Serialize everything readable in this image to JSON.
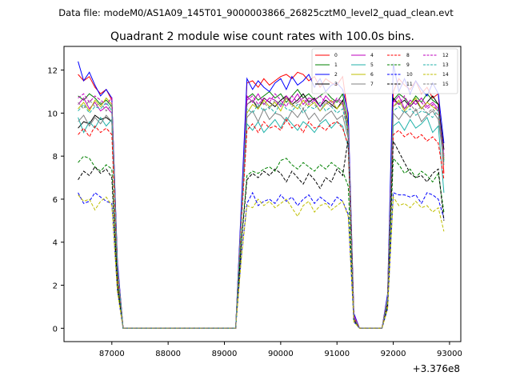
{
  "chart_data": {
    "type": "line",
    "suptitle": "Data file: modeM0/AS1A09_145T01_9000003866_26825cztM0_level2_quad_clean.evt",
    "title": "Quadrant 2 module wise count rates with 100.0s bins.",
    "xlabel": "",
    "ylabel": "",
    "x_offset_label": "+3.376e8",
    "xlim": [
      86150,
      93200
    ],
    "ylim": [
      -0.62,
      13.1
    ],
    "xticks": [
      87000,
      88000,
      89000,
      90000,
      91000,
      92000,
      93000
    ],
    "yticks": [
      0,
      2,
      4,
      6,
      8,
      10,
      12
    ],
    "xtick_labels": [
      "87000",
      "88000",
      "89000",
      "90000",
      "91000",
      "92000",
      "93000"
    ],
    "ytick_labels": [
      "0",
      "2",
      "4",
      "6",
      "8",
      "10",
      "12"
    ],
    "legend_position": "top-right",
    "x": [
      86400,
      86500,
      86600,
      86700,
      86800,
      86900,
      87000,
      87100,
      87200,
      87300,
      87400,
      87500,
      87600,
      87700,
      87800,
      87900,
      88000,
      88100,
      88200,
      88300,
      88400,
      88500,
      88600,
      88700,
      88800,
      88900,
      89000,
      89100,
      89200,
      89300,
      89400,
      89500,
      89600,
      89700,
      89800,
      89900,
      90000,
      90100,
      90200,
      90300,
      90400,
      90500,
      90600,
      90700,
      90800,
      90900,
      91000,
      91100,
      91200,
      91300,
      91400,
      91500,
      91600,
      91700,
      91800,
      91900,
      92000,
      92100,
      92200,
      92300,
      92400,
      92500,
      92600,
      92700,
      92800,
      92900
    ],
    "series": [
      {
        "name": "0",
        "color": "#ff0000",
        "dash": "solid",
        "values": [
          11.8,
          11.5,
          11.7,
          11.2,
          10.9,
          11.1,
          10.6,
          3.0,
          0,
          0,
          0,
          0,
          0,
          0,
          0,
          0,
          0,
          0,
          0,
          0,
          0,
          0,
          0,
          0,
          0,
          0,
          0,
          0,
          0,
          5.5,
          11.4,
          11.5,
          11.2,
          11.6,
          11.3,
          11.5,
          11.7,
          11.8,
          11.6,
          11.9,
          11.8,
          11.5,
          11.7,
          11.2,
          11.6,
          11.4,
          11.3,
          11.7,
          9.8,
          0.6,
          0,
          0,
          0,
          0,
          0,
          1.5,
          11.0,
          11.6,
          11.3,
          11.1,
          11.5,
          10.9,
          11.2,
          10.7,
          10.9,
          7.2
        ]
      },
      {
        "name": "1",
        "color": "#008000",
        "dash": "solid",
        "values": [
          10.8,
          10.6,
          10.9,
          10.7,
          10.4,
          10.6,
          10.3,
          2.9,
          0,
          0,
          0,
          0,
          0,
          0,
          0,
          0,
          0,
          0,
          0,
          0,
          0,
          0,
          0,
          0,
          0,
          0,
          0,
          0,
          0,
          5.3,
          10.7,
          10.9,
          10.6,
          10.8,
          11.0,
          10.7,
          10.9,
          10.5,
          10.8,
          11.1,
          10.7,
          10.9,
          10.6,
          10.8,
          11.0,
          10.7,
          10.5,
          10.9,
          9.5,
          0.5,
          0,
          0,
          0,
          0,
          0,
          1.4,
          10.6,
          10.9,
          10.7,
          10.4,
          10.8,
          10.5,
          10.9,
          10.6,
          10.4,
          7.8
        ]
      },
      {
        "name": "2",
        "color": "#0000ff",
        "dash": "solid",
        "values": [
          12.4,
          11.5,
          11.9,
          11.3,
          10.8,
          11.1,
          10.7,
          3.1,
          0,
          0,
          0,
          0,
          0,
          0,
          0,
          0,
          0,
          0,
          0,
          0,
          0,
          0,
          0,
          0,
          0,
          0,
          0,
          0,
          0,
          5.7,
          11.6,
          11.1,
          11.5,
          11.2,
          11.0,
          11.4,
          11.6,
          11.1,
          11.7,
          11.3,
          11.5,
          11.8,
          11.2,
          11.6,
          11.0,
          11.3,
          11.4,
          11.1,
          10.0,
          0.7,
          0,
          0,
          0,
          0,
          0,
          1.6,
          12.3,
          11.0,
          11.6,
          10.9,
          11.5,
          11.1,
          10.8,
          11.4,
          10.9,
          8.6
        ]
      },
      {
        "name": "3",
        "color": "#000000",
        "dash": "solid",
        "values": [
          9.3,
          9.6,
          9.5,
          9.9,
          9.7,
          9.8,
          9.6,
          2.7,
          0,
          0,
          0,
          0,
          0,
          0,
          0,
          0,
          0,
          0,
          0,
          0,
          0,
          0,
          0,
          0,
          0,
          0,
          0,
          0,
          0,
          5.0,
          10.4,
          10.6,
          10.2,
          10.7,
          10.5,
          10.3,
          10.6,
          10.8,
          10.4,
          10.6,
          10.9,
          10.5,
          10.7,
          10.3,
          10.6,
          10.4,
          10.2,
          10.6,
          9.0,
          0.5,
          0,
          0,
          0,
          0,
          0,
          1.3,
          10.7,
          10.4,
          10.6,
          10.3,
          10.6,
          10.2,
          10.5,
          10.8,
          10.4,
          8.3
        ]
      },
      {
        "name": "4",
        "color": "#bf00bf",
        "dash": "solid",
        "values": [
          10.4,
          10.7,
          10.2,
          10.5,
          10.1,
          10.3,
          10.0,
          2.8,
          0,
          0,
          0,
          0,
          0,
          0,
          0,
          0,
          0,
          0,
          0,
          0,
          0,
          0,
          0,
          0,
          0,
          0,
          0,
          0,
          0,
          5.2,
          10.8,
          10.5,
          10.9,
          10.4,
          10.7,
          10.6,
          10.3,
          10.8,
          10.5,
          10.9,
          10.4,
          10.7,
          10.6,
          10.3,
          10.8,
          10.5,
          10.6,
          10.4,
          9.3,
          0.6,
          0,
          0,
          0,
          0,
          0,
          1.4,
          10.5,
          10.8,
          10.2,
          10.6,
          10.4,
          10.7,
          10.3,
          10.5,
          10.2,
          8.0
        ]
      },
      {
        "name": "5",
        "color": "#20b2aa",
        "dash": "solid",
        "values": [
          9.8,
          9.1,
          9.6,
          9.3,
          9.8,
          9.4,
          9.7,
          2.6,
          0,
          0,
          0,
          0,
          0,
          0,
          0,
          0,
          0,
          0,
          0,
          0,
          0,
          0,
          0,
          0,
          0,
          0,
          0,
          0,
          0,
          4.9,
          9.5,
          9.2,
          9.6,
          9.1,
          9.4,
          9.7,
          9.3,
          9.8,
          9.5,
          9.2,
          9.6,
          9.4,
          9.1,
          9.5,
          9.7,
          9.3,
          9.6,
          9.4,
          8.4,
          0.5,
          0,
          0,
          0,
          0,
          0,
          1.3,
          9.4,
          9.6,
          9.2,
          9.7,
          9.3,
          9.5,
          9.8,
          9.1,
          9.4,
          6.3
        ]
      },
      {
        "name": "6",
        "color": "#bfbf00",
        "dash": "solid",
        "values": [
          10.2,
          10.5,
          10.1,
          10.6,
          10.3,
          10.7,
          10.4,
          2.8,
          0,
          0,
          0,
          0,
          0,
          0,
          0,
          0,
          0,
          0,
          0,
          0,
          0,
          0,
          0,
          0,
          0,
          0,
          0,
          0,
          0,
          5.1,
          10.0,
          10.4,
          10.2,
          10.6,
          10.3,
          10.5,
          10.1,
          10.7,
          10.4,
          10.2,
          10.6,
          10.3,
          10.5,
          10.1,
          10.4,
          10.6,
          10.2,
          10.5,
          9.2,
          0.5,
          0,
          0,
          0,
          0,
          0,
          1.4,
          10.3,
          10.6,
          10.1,
          10.4,
          10.7,
          10.2,
          10.5,
          10.3,
          10.1,
          7.9
        ]
      },
      {
        "name": "7",
        "color": "#808080",
        "dash": "solid",
        "values": [
          9.6,
          9.9,
          9.4,
          9.8,
          9.5,
          9.9,
          9.6,
          2.7,
          0,
          0,
          0,
          0,
          0,
          0,
          0,
          0,
          0,
          0,
          0,
          0,
          0,
          0,
          0,
          0,
          0,
          0,
          0,
          0,
          0,
          5.0,
          9.8,
          10.1,
          9.6,
          10.2,
          9.7,
          10.0,
          9.9,
          9.6,
          10.1,
          9.8,
          10.2,
          9.7,
          10.0,
          9.6,
          9.9,
          10.1,
          9.7,
          9.9,
          8.8,
          0.5,
          0,
          0,
          0,
          0,
          0,
          1.3,
          10.0,
          9.7,
          10.1,
          9.8,
          10.2,
          9.6,
          9.9,
          10.1,
          9.7,
          7.7
        ]
      },
      {
        "name": "8",
        "color": "#ff0000",
        "dash": "dashed",
        "values": [
          9.0,
          9.3,
          8.9,
          9.4,
          9.1,
          9.3,
          9.0,
          2.5,
          0,
          0,
          0,
          0,
          0,
          0,
          0,
          0,
          0,
          0,
          0,
          0,
          0,
          0,
          0,
          0,
          0,
          0,
          0,
          0,
          0,
          4.8,
          9.2,
          9.5,
          9.1,
          9.6,
          9.3,
          9.4,
          9.2,
          9.7,
          9.3,
          9.5,
          9.1,
          9.6,
          9.3,
          9.4,
          9.2,
          9.5,
          9.6,
          9.3,
          8.5,
          0.5,
          0,
          0,
          0,
          0,
          0,
          1.2,
          9.0,
          9.2,
          8.9,
          9.1,
          8.8,
          9.0,
          8.7,
          8.9,
          8.6,
          6.9
        ]
      },
      {
        "name": "9",
        "color": "#008000",
        "dash": "dashed",
        "values": [
          7.7,
          8.0,
          7.9,
          7.5,
          7.3,
          7.6,
          7.4,
          2.1,
          0,
          0,
          0,
          0,
          0,
          0,
          0,
          0,
          0,
          0,
          0,
          0,
          0,
          0,
          0,
          0,
          0,
          0,
          0,
          0,
          0,
          4.0,
          7.1,
          7.3,
          7.2,
          7.4,
          7.5,
          7.3,
          7.8,
          7.9,
          7.6,
          7.4,
          7.7,
          7.5,
          7.3,
          7.6,
          7.4,
          7.7,
          7.5,
          7.3,
          6.6,
          0.4,
          0,
          0,
          0,
          0,
          0,
          1.1,
          7.9,
          7.6,
          7.2,
          7.4,
          7.0,
          7.3,
          7.1,
          6.8,
          7.2,
          5.4
        ]
      },
      {
        "name": "10",
        "color": "#0000ff",
        "dash": "dashed",
        "values": [
          6.3,
          5.8,
          5.9,
          6.3,
          6.1,
          5.9,
          5.8,
          1.7,
          0,
          0,
          0,
          0,
          0,
          0,
          0,
          0,
          0,
          0,
          0,
          0,
          0,
          0,
          0,
          0,
          0,
          0,
          0,
          0,
          0,
          3.3,
          5.8,
          6.3,
          5.7,
          5.9,
          6.0,
          5.8,
          6.2,
          5.9,
          6.1,
          5.7,
          6.0,
          6.2,
          5.8,
          6.1,
          5.9,
          5.7,
          6.1,
          5.9,
          5.3,
          0.3,
          0,
          0,
          0,
          0,
          0,
          0.9,
          6.3,
          6.2,
          6.2,
          6.1,
          6.2,
          5.8,
          6.3,
          6.2,
          6.0,
          5.1
        ]
      },
      {
        "name": "11",
        "color": "#000000",
        "dash": "dashed",
        "values": [
          6.9,
          7.3,
          7.1,
          7.5,
          7.2,
          7.4,
          7.0,
          2.0,
          0,
          0,
          0,
          0,
          0,
          0,
          0,
          0,
          0,
          0,
          0,
          0,
          0,
          0,
          0,
          0,
          0,
          0,
          0,
          0,
          0,
          3.9,
          6.9,
          7.2,
          7.0,
          7.3,
          7.1,
          7.4,
          7.2,
          6.8,
          7.3,
          7.0,
          6.7,
          7.2,
          6.9,
          6.5,
          7.0,
          6.8,
          7.4,
          7.1,
          8.8,
          0.4,
          0,
          0,
          0,
          0,
          0,
          1.1,
          8.7,
          8.2,
          7.7,
          7.2,
          7.0,
          7.1,
          6.8,
          7.2,
          7.4,
          5.0
        ]
      },
      {
        "name": "12",
        "color": "#bf00bf",
        "dash": "dashed",
        "values": [
          10.7,
          10.9,
          10.5,
          10.8,
          10.6,
          10.4,
          10.7,
          2.9,
          0,
          0,
          0,
          0,
          0,
          0,
          0,
          0,
          0,
          0,
          0,
          0,
          0,
          0,
          0,
          0,
          0,
          0,
          0,
          0,
          0,
          5.3,
          10.6,
          10.8,
          10.4,
          10.7,
          10.5,
          10.9,
          10.6,
          10.3,
          10.8,
          10.5,
          10.7,
          10.4,
          10.6,
          10.8,
          10.5,
          10.3,
          10.7,
          10.5,
          9.4,
          0.6,
          0,
          0,
          0,
          0,
          0,
          1.4,
          10.6,
          10.4,
          10.8,
          10.3,
          10.6,
          10.5,
          10.2,
          10.4,
          10.1,
          8.1
        ]
      },
      {
        "name": "13",
        "color": "#20b2aa",
        "dash": "dashed",
        "values": [
          10.1,
          10.4,
          10.0,
          10.3,
          10.2,
          10.5,
          10.1,
          2.8,
          0,
          0,
          0,
          0,
          0,
          0,
          0,
          0,
          0,
          0,
          0,
          0,
          0,
          0,
          0,
          0,
          0,
          0,
          0,
          0,
          0,
          5.1,
          10.2,
          10.0,
          10.4,
          10.1,
          10.3,
          10.0,
          10.5,
          10.2,
          10.1,
          10.4,
          10.0,
          10.3,
          10.2,
          10.5,
          10.1,
          10.3,
          10.0,
          10.2,
          9.1,
          0.5,
          0,
          0,
          0,
          0,
          0,
          1.3,
          10.1,
          10.3,
          10.0,
          10.2,
          9.9,
          10.1,
          10.0,
          9.8,
          10.2,
          7.6
        ]
      },
      {
        "name": "14",
        "color": "#bfbf00",
        "dash": "dashed",
        "values": [
          6.2,
          5.9,
          6.0,
          5.5,
          5.9,
          6.1,
          5.7,
          1.7,
          0,
          0,
          0,
          0,
          0,
          0,
          0,
          0,
          0,
          0,
          0,
          0,
          0,
          0,
          0,
          0,
          0,
          0,
          0,
          0,
          0,
          3.2,
          5.7,
          5.6,
          6.0,
          5.7,
          5.9,
          5.6,
          5.8,
          6.0,
          5.6,
          5.2,
          5.7,
          5.9,
          5.4,
          5.7,
          5.8,
          5.5,
          5.7,
          5.9,
          5.2,
          0.3,
          0,
          0,
          0,
          0,
          0,
          0.9,
          6.1,
          5.7,
          5.8,
          5.6,
          5.9,
          5.6,
          5.7,
          5.4,
          5.6,
          4.5
        ]
      },
      {
        "name": "15",
        "color": "#808080",
        "dash": "dashed",
        "values": [
          10.5,
          10.2,
          10.6,
          10.3,
          10.5,
          10.1,
          10.4,
          2.8,
          0,
          0,
          0,
          0,
          0,
          0,
          0,
          0,
          0,
          0,
          0,
          0,
          0,
          0,
          0,
          0,
          0,
          0,
          0,
          0,
          0,
          5.2,
          10.4,
          10.6,
          10.3,
          10.5,
          10.2,
          10.6,
          10.4,
          10.7,
          10.3,
          10.5,
          10.2,
          10.6,
          10.4,
          10.1,
          10.5,
          10.3,
          10.6,
          10.4,
          9.3,
          0.5,
          0,
          0,
          0,
          0,
          0,
          1.4,
          10.3,
          10.5,
          10.2,
          10.4,
          10.1,
          10.3,
          10.0,
          10.2,
          9.9,
          7.9
        ]
      }
    ]
  }
}
